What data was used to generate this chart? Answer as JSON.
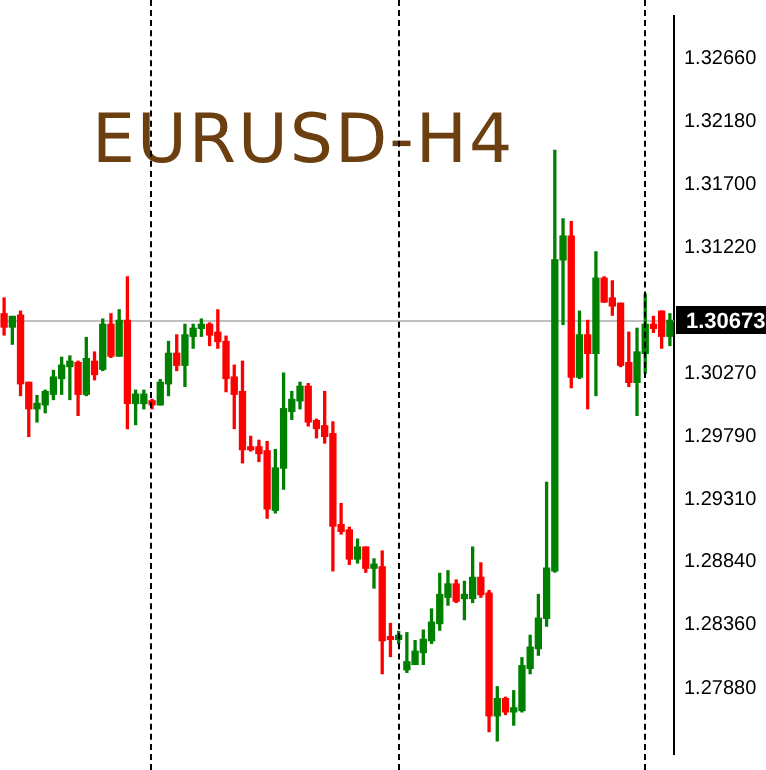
{
  "chart_data": {
    "type": "candlestick",
    "title": "EURUSD-H4",
    "categories": [
      null,
      null,
      null,
      null,
      null,
      null,
      null,
      null,
      null,
      null,
      null,
      null,
      null,
      null,
      null,
      null,
      null,
      null,
      null,
      null,
      null,
      null,
      null,
      null,
      null,
      null,
      null,
      null,
      null,
      null,
      null,
      null,
      null,
      null,
      null,
      null,
      null,
      null,
      null,
      null,
      null,
      null,
      null,
      null,
      null,
      null,
      null,
      null,
      null,
      null,
      null,
      null,
      null,
      null,
      null,
      null,
      null,
      null,
      null,
      null,
      null,
      null,
      null,
      null,
      null,
      null,
      null,
      null,
      null,
      null,
      null,
      null,
      null,
      null,
      null,
      null,
      null,
      null,
      null,
      null,
      null,
      null
    ],
    "ohlc": [
      [
        1.3072,
        1.3084,
        1.3056,
        1.3062
      ],
      [
        1.3062,
        1.307,
        1.3049,
        1.307
      ],
      [
        1.3071,
        1.3074,
        1.301,
        1.3019
      ],
      [
        1.302,
        1.302,
        1.2979,
        1.3
      ],
      [
        1.3,
        1.301,
        1.299,
        1.3004
      ],
      [
        1.3003,
        1.3014,
        1.2997,
        1.3013
      ],
      [
        1.3011,
        1.3029,
        1.3007,
        1.3024
      ],
      [
        1.3023,
        1.3039,
        1.3011,
        1.3033
      ],
      [
        1.3032,
        1.304,
        1.3007,
        1.3036
      ],
      [
        1.3035,
        1.3036,
        1.2995,
        1.3011
      ],
      [
        1.3011,
        1.3054,
        1.301,
        1.3038
      ],
      [
        1.3036,
        1.3043,
        1.3022,
        1.3026
      ],
      [
        1.303,
        1.3068,
        1.3029,
        1.3064
      ],
      [
        1.3064,
        1.3072,
        1.3039,
        1.304
      ],
      [
        1.304,
        1.3075,
        1.304,
        1.3067
      ],
      [
        1.3067,
        1.31,
        1.2985,
        1.3004
      ],
      [
        1.3004,
        1.3014,
        1.2988,
        1.3011
      ],
      [
        1.3004,
        1.3014,
        1.3,
        1.3011
      ],
      [
        1.3006,
        1.3007,
        1.3,
        1.3003
      ],
      [
        1.3003,
        1.3022,
        1.3003,
        1.302
      ],
      [
        1.3019,
        1.3051,
        1.301,
        1.3042
      ],
      [
        1.3042,
        1.3056,
        1.3029,
        1.3033
      ],
      [
        1.3033,
        1.3064,
        1.3017,
        1.3056
      ],
      [
        1.3055,
        1.3064,
        1.3046,
        1.3061
      ],
      [
        1.3061,
        1.3068,
        1.3055,
        1.3064
      ],
      [
        1.3064,
        1.3065,
        1.3048,
        1.3056
      ],
      [
        1.3058,
        1.3075,
        1.3046,
        1.3051
      ],
      [
        1.3051,
        1.3055,
        1.3013,
        1.3023
      ],
      [
        1.3024,
        1.3033,
        1.2985,
        1.3011
      ],
      [
        1.3013,
        1.3036,
        1.2959,
        1.2969
      ],
      [
        1.2971,
        1.2979,
        1.2968,
        1.2969
      ],
      [
        1.2971,
        1.2976,
        1.296,
        1.2966
      ],
      [
        1.2968,
        1.2975,
        1.2917,
        1.2924
      ],
      [
        1.2923,
        1.2969,
        1.2921,
        1.2955
      ],
      [
        1.2955,
        1.3027,
        1.2939,
        1.3
      ],
      [
        1.2998,
        1.3013,
        1.2992,
        1.3007
      ],
      [
        1.3006,
        1.302,
        1.3,
        1.3017
      ],
      [
        1.3017,
        1.3019,
        1.2987,
        1.299
      ],
      [
        1.2991,
        1.2992,
        1.2978,
        1.2985
      ],
      [
        1.2987,
        1.3013,
        1.2974,
        1.2979
      ],
      [
        1.2981,
        1.299,
        1.2877,
        1.2911
      ],
      [
        1.2912,
        1.2928,
        1.2905,
        1.2907
      ],
      [
        1.2908,
        1.291,
        1.2882,
        1.2886
      ],
      [
        1.2886,
        1.2901,
        1.2883,
        1.2895
      ],
      [
        1.2895,
        1.2895,
        1.2876,
        1.2879
      ],
      [
        1.2879,
        1.2886,
        1.2864,
        1.2882
      ],
      [
        1.288,
        1.2892,
        1.2799,
        1.2824
      ],
      [
        1.2827,
        1.2837,
        1.2812,
        1.2825
      ],
      [
        1.2825,
        1.2831,
        1.2822,
        1.2828
      ],
      [
        1.2802,
        1.283,
        1.28,
        1.2808
      ],
      [
        1.2806,
        1.2824,
        1.2806,
        1.2816
      ],
      [
        1.2815,
        1.2832,
        1.2806,
        1.2825
      ],
      [
        1.2824,
        1.2848,
        1.2822,
        1.2838
      ],
      [
        1.2837,
        1.2875,
        1.2832,
        1.2859
      ],
      [
        1.2857,
        1.2877,
        1.2851,
        1.2867
      ],
      [
        1.2867,
        1.287,
        1.2853,
        1.2854
      ],
      [
        1.2856,
        1.2869,
        1.284,
        1.2859
      ],
      [
        1.2856,
        1.2895,
        1.2853,
        1.2872
      ],
      [
        1.2872,
        1.2883,
        1.2857,
        1.2859
      ],
      [
        1.286,
        1.2862,
        1.2755,
        1.2767
      ],
      [
        1.2767,
        1.2789,
        1.2748,
        1.278
      ],
      [
        1.278,
        1.2781,
        1.2768,
        1.277
      ],
      [
        1.277,
        1.2786,
        1.276,
        1.2773
      ],
      [
        1.2771,
        1.2811,
        1.277,
        1.2805
      ],
      [
        1.2803,
        1.2828,
        1.2799,
        1.2819
      ],
      [
        1.2818,
        1.2859,
        1.2813,
        1.2841
      ],
      [
        1.2841,
        1.2944,
        1.2835,
        1.2879
      ],
      [
        1.2877,
        1.3196,
        1.2876,
        1.3113
      ],
      [
        1.3113,
        1.3144,
        1.3064,
        1.3131
      ],
      [
        1.3131,
        1.3142,
        1.3016,
        1.3024
      ],
      [
        1.3024,
        1.3074,
        1.3023,
        1.3056
      ],
      [
        1.3056,
        1.3067,
        1.3,
        1.3042
      ],
      [
        1.3042,
        1.3119,
        1.301,
        1.3099
      ],
      [
        1.3099,
        1.31,
        1.3081,
        1.3081
      ],
      [
        1.3084,
        1.3097,
        1.3071,
        1.3078
      ],
      [
        1.308,
        1.308,
        1.3032,
        1.3033
      ],
      [
        1.3035,
        1.3058,
        1.3017,
        1.302
      ],
      [
        1.302,
        1.3061,
        1.2995,
        1.3043
      ],
      [
        1.3042,
        1.3087,
        1.3027,
        1.3064
      ],
      [
        1.3064,
        1.307,
        1.3058,
        1.3061
      ],
      [
        1.3074,
        1.3074,
        1.3046,
        1.3055
      ],
      [
        1.3055,
        1.3072,
        1.3048,
        1.3067
      ]
    ],
    "ylim": [
      1.2738,
      1.3298
    ],
    "yticks": [
      {
        "value": 1.3266,
        "label": "1.32660"
      },
      {
        "value": 1.3218,
        "label": "1.32180"
      },
      {
        "value": 1.317,
        "label": "1.31700"
      },
      {
        "value": 1.3122,
        "label": "1.31220"
      },
      {
        "value": 1.3027,
        "label": "1.30270"
      },
      {
        "value": 1.2979,
        "label": "1.29790"
      },
      {
        "value": 1.2931,
        "label": "1.29310"
      },
      {
        "value": 1.2884,
        "label": "1.28840"
      },
      {
        "value": 1.2836,
        "label": "1.28360"
      },
      {
        "value": 1.2788,
        "label": "1.27880"
      }
    ],
    "ref_lines": [
      {
        "axis": "y",
        "value": 1.30673,
        "label": "1.30673",
        "color": "#c0c0c0"
      }
    ],
    "tick_labels": "y",
    "grid": "x",
    "legend": false
  }
}
